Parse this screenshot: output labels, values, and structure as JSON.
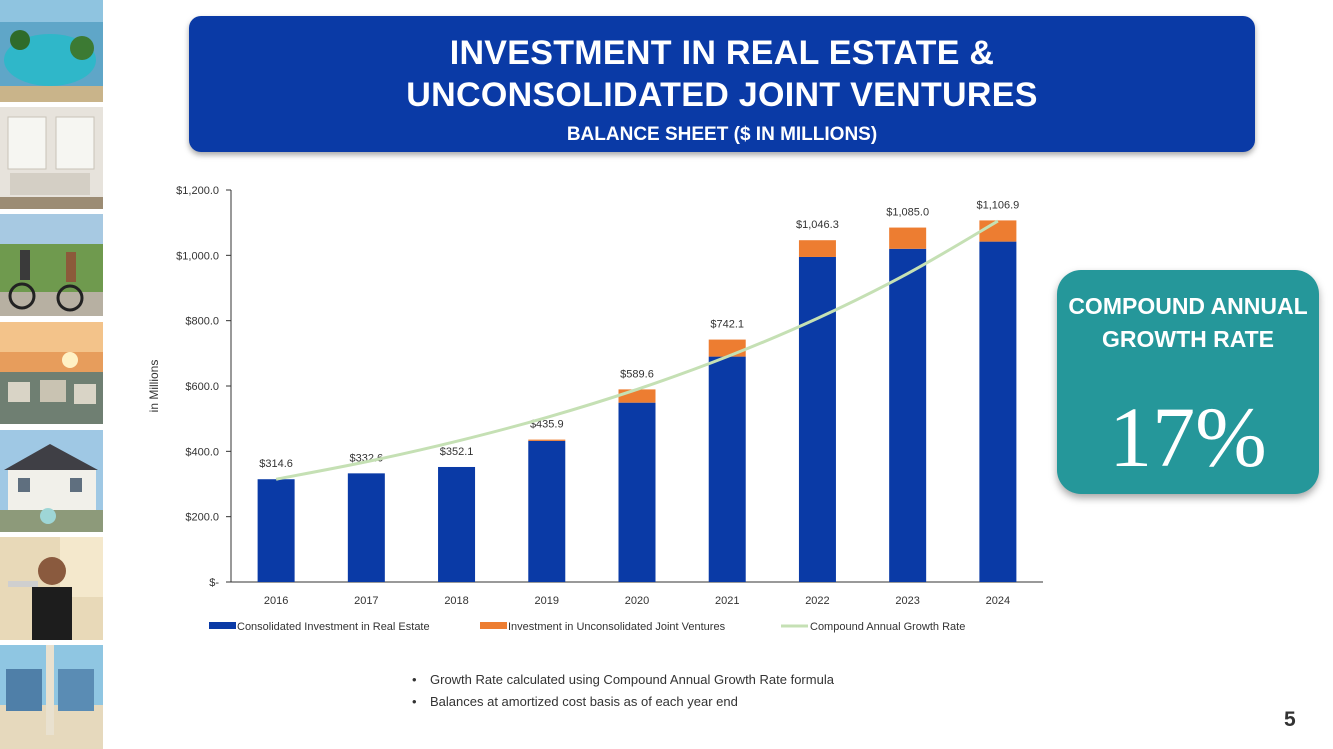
{
  "title": {
    "line1": "INVESTMENT IN REAL ESTATE &",
    "line2": "UNCONSOLIDATED JOINT VENTURES",
    "subtitle": "BALANCE SHEET ($ IN MILLIONS)"
  },
  "cagr_box": {
    "label": "COMPOUND ANNUAL GROWTH RATE",
    "value": "17%"
  },
  "notes": [
    "Growth Rate calculated using Compound Annual Growth Rate formula",
    "Balances at amortized cost basis as of each year end"
  ],
  "page_number": "5",
  "colors": {
    "banner": "#0a3aa6",
    "real_estate": "#0a3aa6",
    "joint_ventures": "#ed7d31",
    "cagr_line": "#c5e0b4",
    "cagr_box": "#25979a"
  },
  "chart_data": {
    "type": "bar",
    "stacked": true,
    "categories": [
      "2016",
      "2017",
      "2018",
      "2019",
      "2020",
      "2021",
      "2022",
      "2023",
      "2024"
    ],
    "series": [
      {
        "name": "Consolidated Investment in Real Estate",
        "values": [
          314.6,
          332.6,
          352.1,
          432.0,
          549.0,
          690.0,
          995.0,
          1020.0,
          1042.0
        ]
      },
      {
        "name": "Investment in Unconsolidated Joint Ventures",
        "values": [
          0,
          0,
          0,
          3.9,
          40.6,
          52.1,
          51.3,
          65.0,
          64.9
        ]
      }
    ],
    "line_series": {
      "name": "Compound Annual Growth Rate",
      "values": [
        314.6,
        368.1,
        430.7,
        503.9,
        589.6,
        689.8,
        807.1,
        944.3,
        1104.8
      ]
    },
    "totals": [
      314.6,
      332.6,
      352.1,
      435.9,
      589.6,
      742.1,
      1046.3,
      1085.0,
      1106.9
    ],
    "total_labels": [
      "$314.6",
      "$332.6",
      "$352.1",
      "$435.9",
      "$589.6",
      "$742.1",
      "$1,046.3",
      "$1,085.0",
      "$1,106.9"
    ],
    "y_ticks": [
      0,
      200,
      400,
      600,
      800,
      1000,
      1200
    ],
    "y_tick_labels": [
      "$-",
      "$200.0",
      "$400.0",
      "$600.0",
      "$800.0",
      "$1,000.0",
      "$1,200.0"
    ],
    "ylim": [
      0,
      1200
    ],
    "ylabel": "in Millions",
    "xlabel": "",
    "legend_position": "bottom"
  }
}
